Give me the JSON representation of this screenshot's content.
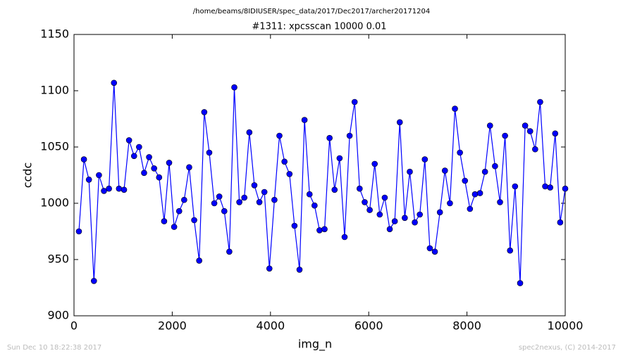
{
  "chart_data": {
    "type": "line",
    "suptitle": "/home/beams/8IDIUSER/spec_data/2017/Dec2017/archer20171204",
    "title": "#1311: xpcsscan 10000 0.01",
    "xlabel": "img_n",
    "ylabel": "ccdc",
    "footer_left": "Sun Dec 10 18:22:38 2017",
    "footer_right": "spec2nexus, (C) 2014-2017",
    "xlim": [
      0,
      10000
    ],
    "xticks": [
      0,
      2000,
      4000,
      6000,
      8000,
      10000
    ],
    "ylim": [
      900,
      1150
    ],
    "yticks": [
      900,
      950,
      1000,
      1050,
      1100,
      1150
    ],
    "x": [
      100,
      202,
      304,
      406,
      508,
      610,
      712,
      814,
      916,
      1019,
      1121,
      1223,
      1325,
      1427,
      1529,
      1631,
      1733,
      1835,
      1937,
      2039,
      2141,
      2243,
      2345,
      2447,
      2549,
      2652,
      2754,
      2856,
      2958,
      3060,
      3162,
      3264,
      3366,
      3468,
      3570,
      3672,
      3774,
      3876,
      3978,
      4080,
      4182,
      4285,
      4387,
      4489,
      4591,
      4693,
      4795,
      4897,
      4999,
      5101,
      5203,
      5305,
      5407,
      5509,
      5611,
      5713,
      5815,
      5918,
      6020,
      6122,
      6224,
      6326,
      6428,
      6530,
      6632,
      6734,
      6836,
      6938,
      7040,
      7142,
      7244,
      7346,
      7449,
      7551,
      7653,
      7755,
      7857,
      7959,
      8061,
      8163,
      8265,
      8367,
      8469,
      8571,
      8673,
      8775,
      8877,
      8979,
      9082,
      9184,
      9286,
      9388,
      9490,
      9592,
      9694,
      9796,
      9898,
      10000
    ],
    "series": [
      {
        "color": "#0000ff",
        "values": [
          975,
          1039,
          1021,
          931,
          1025,
          1011,
          1013,
          1107,
          1013,
          1012,
          1056,
          1042,
          1050,
          1027,
          1041,
          1031,
          1023,
          984,
          1036,
          979,
          993,
          1003,
          1032,
          985,
          949,
          1081,
          1045,
          1000,
          1006,
          993,
          957,
          1103,
          1001,
          1005,
          1063,
          1016,
          1001,
          1010,
          942,
          1003,
          1060,
          1037,
          1026,
          980,
          941,
          1074,
          1008,
          998,
          976,
          977,
          1058,
          1012,
          1040,
          970,
          1060,
          1090,
          1013,
          1001,
          994,
          1035,
          990,
          1005,
          977,
          984,
          1072,
          987,
          1028,
          983,
          990,
          1039,
          960,
          957,
          992,
          1029,
          1000,
          1084,
          1045,
          1020,
          995,
          1008,
          1009,
          1028,
          1069,
          1033,
          1001,
          1060,
          958,
          1015,
          929,
          1069,
          1064,
          1048,
          1090,
          1015,
          1014,
          1062,
          983,
          1013
        ]
      }
    ]
  }
}
